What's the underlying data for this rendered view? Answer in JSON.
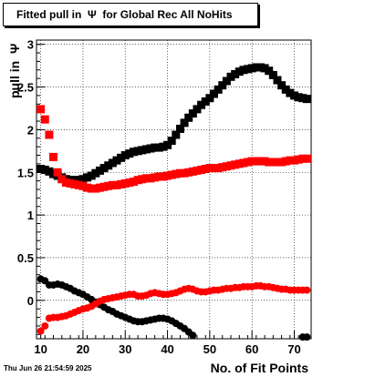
{
  "chart_data": {
    "type": "scatter",
    "title": "Fitted pull in  Ψ  for Global Rec All NoHits",
    "xlabel": "No. of Fit Points",
    "ylabel": "pull in  Ψ",
    "xlim": [
      9,
      74
    ],
    "ylim": [
      -0.45,
      3.05
    ],
    "xticks": [
      10,
      20,
      30,
      40,
      50,
      60,
      70
    ],
    "yticks": [
      0,
      0.5,
      1,
      1.5,
      2,
      2.5,
      3
    ],
    "ytick_labels": [
      "0",
      "0.5",
      "1",
      "1.5",
      "2",
      "2.5",
      "3"
    ],
    "grid": true,
    "series": [
      {
        "color": "#000000",
        "marker": "square",
        "points": [
          [
            10,
            1.54
          ],
          [
            11,
            1.53
          ],
          [
            12,
            1.51
          ],
          [
            13,
            1.48
          ],
          [
            14,
            1.46
          ],
          [
            15,
            1.44
          ],
          [
            16,
            1.42
          ],
          [
            17,
            1.41
          ],
          [
            18,
            1.41
          ],
          [
            19,
            1.41
          ],
          [
            20,
            1.42
          ],
          [
            21,
            1.44
          ],
          [
            22,
            1.46
          ],
          [
            23,
            1.49
          ],
          [
            24,
            1.52
          ],
          [
            25,
            1.55
          ],
          [
            26,
            1.58
          ],
          [
            27,
            1.61
          ],
          [
            28,
            1.64
          ],
          [
            29,
            1.67
          ],
          [
            30,
            1.7
          ],
          [
            31,
            1.72
          ],
          [
            32,
            1.74
          ],
          [
            33,
            1.75
          ],
          [
            34,
            1.76
          ],
          [
            35,
            1.77
          ],
          [
            36,
            1.78
          ],
          [
            37,
            1.79
          ],
          [
            38,
            1.79
          ],
          [
            39,
            1.8
          ],
          [
            40,
            1.82
          ],
          [
            41,
            1.87
          ],
          [
            42,
            1.94
          ],
          [
            43,
            2.01
          ],
          [
            44,
            2.08
          ],
          [
            45,
            2.14
          ],
          [
            46,
            2.19
          ],
          [
            47,
            2.24
          ],
          [
            48,
            2.29
          ],
          [
            49,
            2.33
          ],
          [
            50,
            2.37
          ],
          [
            51,
            2.42
          ],
          [
            52,
            2.47
          ],
          [
            53,
            2.52
          ],
          [
            54,
            2.57
          ],
          [
            55,
            2.62
          ],
          [
            56,
            2.65
          ],
          [
            57,
            2.68
          ],
          [
            58,
            2.7
          ],
          [
            59,
            2.71
          ],
          [
            60,
            2.72
          ],
          [
            61,
            2.73
          ],
          [
            62,
            2.73
          ],
          [
            63,
            2.72
          ],
          [
            64,
            2.69
          ],
          [
            65,
            2.64
          ],
          [
            66,
            2.58
          ],
          [
            67,
            2.52
          ],
          [
            68,
            2.47
          ],
          [
            69,
            2.43
          ],
          [
            70,
            2.4
          ],
          [
            71,
            2.38
          ],
          [
            72,
            2.37
          ],
          [
            73,
            2.36
          ]
        ]
      },
      {
        "color": "#ff0000",
        "marker": "square",
        "points": [
          [
            10,
            2.24
          ],
          [
            11,
            2.12
          ],
          [
            12,
            1.94
          ],
          [
            13,
            1.68
          ],
          [
            14,
            1.5
          ],
          [
            15,
            1.42
          ],
          [
            16,
            1.38
          ],
          [
            17,
            1.37
          ],
          [
            18,
            1.36
          ],
          [
            19,
            1.35
          ],
          [
            20,
            1.34
          ],
          [
            21,
            1.32
          ],
          [
            22,
            1.31
          ],
          [
            23,
            1.31
          ],
          [
            24,
            1.32
          ],
          [
            25,
            1.33
          ],
          [
            26,
            1.34
          ],
          [
            27,
            1.35
          ],
          [
            28,
            1.35
          ],
          [
            29,
            1.36
          ],
          [
            30,
            1.37
          ],
          [
            31,
            1.38
          ],
          [
            32,
            1.39
          ],
          [
            33,
            1.41
          ],
          [
            34,
            1.42
          ],
          [
            35,
            1.43
          ],
          [
            36,
            1.43
          ],
          [
            37,
            1.44
          ],
          [
            38,
            1.45
          ],
          [
            39,
            1.45
          ],
          [
            40,
            1.46
          ],
          [
            41,
            1.47
          ],
          [
            42,
            1.48
          ],
          [
            43,
            1.49
          ],
          [
            44,
            1.49
          ],
          [
            45,
            1.5
          ],
          [
            46,
            1.51
          ],
          [
            47,
            1.52
          ],
          [
            48,
            1.53
          ],
          [
            49,
            1.54
          ],
          [
            50,
            1.55
          ],
          [
            51,
            1.55
          ],
          [
            52,
            1.55
          ],
          [
            53,
            1.56
          ],
          [
            54,
            1.57
          ],
          [
            55,
            1.58
          ],
          [
            56,
            1.59
          ],
          [
            57,
            1.6
          ],
          [
            58,
            1.61
          ],
          [
            59,
            1.62
          ],
          [
            60,
            1.63
          ],
          [
            61,
            1.63
          ],
          [
            62,
            1.63
          ],
          [
            63,
            1.63
          ],
          [
            64,
            1.62
          ],
          [
            65,
            1.62
          ],
          [
            66,
            1.62
          ],
          [
            67,
            1.62
          ],
          [
            68,
            1.63
          ],
          [
            69,
            1.64
          ],
          [
            70,
            1.64
          ],
          [
            71,
            1.65
          ],
          [
            72,
            1.66
          ],
          [
            73,
            1.66
          ]
        ]
      },
      {
        "color": "#000000",
        "marker": "circle",
        "points": [
          [
            10,
            0.25
          ],
          [
            11,
            0.23
          ],
          [
            12,
            0.18
          ],
          [
            13,
            0.18
          ],
          [
            14,
            0.19
          ],
          [
            15,
            0.18
          ],
          [
            16,
            0.16
          ],
          [
            17,
            0.14
          ],
          [
            18,
            0.11
          ],
          [
            19,
            0.09
          ],
          [
            20,
            0.07
          ],
          [
            21,
            0.04
          ],
          [
            22,
            0.01
          ],
          [
            23,
            -0.02
          ],
          [
            24,
            -0.05
          ],
          [
            25,
            -0.08
          ],
          [
            26,
            -0.11
          ],
          [
            27,
            -0.13
          ],
          [
            28,
            -0.16
          ],
          [
            29,
            -0.18
          ],
          [
            30,
            -0.2
          ],
          [
            31,
            -0.22
          ],
          [
            32,
            -0.24
          ],
          [
            33,
            -0.25
          ],
          [
            34,
            -0.25
          ],
          [
            35,
            -0.24
          ],
          [
            36,
            -0.23
          ],
          [
            37,
            -0.22
          ],
          [
            38,
            -0.21
          ],
          [
            39,
            -0.21
          ],
          [
            40,
            -0.22
          ],
          [
            41,
            -0.24
          ],
          [
            42,
            -0.27
          ],
          [
            43,
            -0.3
          ],
          [
            44,
            -0.33
          ],
          [
            45,
            -0.37
          ],
          [
            46,
            -0.41
          ],
          [
            72,
            -0.43
          ],
          [
            73,
            -0.43
          ]
        ]
      },
      {
        "color": "#ff0000",
        "marker": "circle",
        "points": [
          [
            10,
            -0.36
          ],
          [
            11,
            -0.3
          ],
          [
            12,
            -0.21
          ],
          [
            13,
            -0.2
          ],
          [
            14,
            -0.2
          ],
          [
            15,
            -0.19
          ],
          [
            16,
            -0.18
          ],
          [
            17,
            -0.16
          ],
          [
            18,
            -0.14
          ],
          [
            19,
            -0.12
          ],
          [
            20,
            -0.1
          ],
          [
            21,
            -0.09
          ],
          [
            22,
            -0.07
          ],
          [
            23,
            -0.04
          ],
          [
            24,
            -0.01
          ],
          [
            25,
            0.01
          ],
          [
            26,
            0.02
          ],
          [
            27,
            0.03
          ],
          [
            28,
            0.04
          ],
          [
            29,
            0.05
          ],
          [
            30,
            0.06
          ],
          [
            31,
            0.07
          ],
          [
            32,
            0.07
          ],
          [
            33,
            0.05
          ],
          [
            34,
            0.05
          ],
          [
            35,
            0.06
          ],
          [
            36,
            0.08
          ],
          [
            37,
            0.09
          ],
          [
            38,
            0.08
          ],
          [
            39,
            0.07
          ],
          [
            40,
            0.07
          ],
          [
            41,
            0.08
          ],
          [
            42,
            0.09
          ],
          [
            43,
            0.11
          ],
          [
            44,
            0.13
          ],
          [
            45,
            0.14
          ],
          [
            46,
            0.13
          ],
          [
            47,
            0.11
          ],
          [
            48,
            0.1
          ],
          [
            49,
            0.1
          ],
          [
            50,
            0.11
          ],
          [
            51,
            0.12
          ],
          [
            52,
            0.12
          ],
          [
            53,
            0.13
          ],
          [
            54,
            0.14
          ],
          [
            55,
            0.14
          ],
          [
            56,
            0.15
          ],
          [
            57,
            0.15
          ],
          [
            58,
            0.16
          ],
          [
            59,
            0.16
          ],
          [
            60,
            0.16
          ],
          [
            61,
            0.17
          ],
          [
            62,
            0.17
          ],
          [
            63,
            0.16
          ],
          [
            64,
            0.16
          ],
          [
            65,
            0.15
          ],
          [
            66,
            0.14
          ],
          [
            67,
            0.13
          ],
          [
            68,
            0.13
          ],
          [
            69,
            0.12
          ],
          [
            70,
            0.12
          ],
          [
            71,
            0.12
          ],
          [
            72,
            0.12
          ],
          [
            73,
            0.12
          ]
        ]
      }
    ]
  },
  "footer": {
    "timestamp": "Thu Jun 26 21:54:59 2025"
  }
}
